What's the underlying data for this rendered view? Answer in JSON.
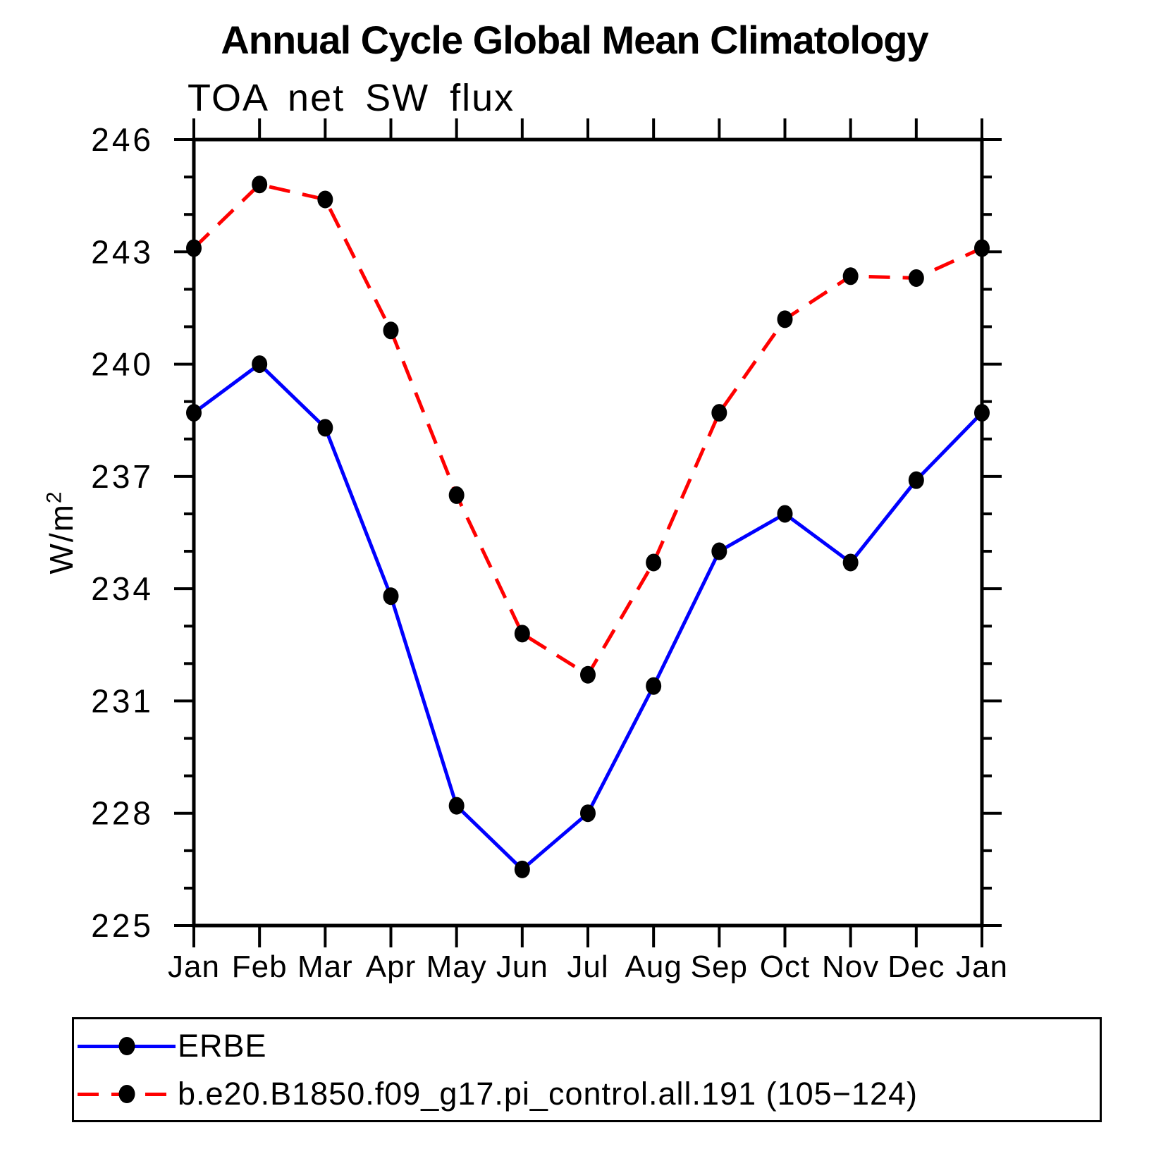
{
  "chart_data": {
    "type": "line",
    "title": "Annual Cycle Global Mean Climatology",
    "subtitle": "TOA net SW flux",
    "ylabel": "W/m",
    "ylabel_exponent": "2",
    "xlabel": "",
    "categories": [
      "Jan",
      "Feb",
      "Mar",
      "Apr",
      "May",
      "Jun",
      "Jul",
      "Aug",
      "Sep",
      "Oct",
      "Nov",
      "Dec",
      "Jan"
    ],
    "series": [
      {
        "name": "ERBE",
        "color": "#0000ff",
        "line_style": "solid",
        "marker": "filled-circle",
        "marker_color": "#000000",
        "values": [
          238.7,
          240.0,
          238.3,
          233.8,
          228.2,
          226.5,
          228.0,
          231.4,
          235.0,
          236.0,
          234.7,
          236.9,
          238.7
        ]
      },
      {
        "name": "b.e20.B1850.f09_g17.pi_control.all.191 (105−124)",
        "color": "#ff0000",
        "line_style": "dashed",
        "marker": "filled-circle",
        "marker_color": "#000000",
        "values": [
          243.1,
          244.8,
          244.4,
          240.9,
          236.5,
          232.8,
          231.7,
          234.7,
          238.7,
          241.2,
          242.35,
          242.3,
          243.1
        ]
      }
    ],
    "ylim": [
      225,
      246
    ],
    "ytick_major_step": 3,
    "ytick_minor_step": 1,
    "ytick_labels": [
      225,
      228,
      231,
      234,
      237,
      240,
      243,
      246
    ],
    "grid": false,
    "axis_ticks": "outward",
    "axis_color": "#000000",
    "legend_position": "bottom-box"
  }
}
